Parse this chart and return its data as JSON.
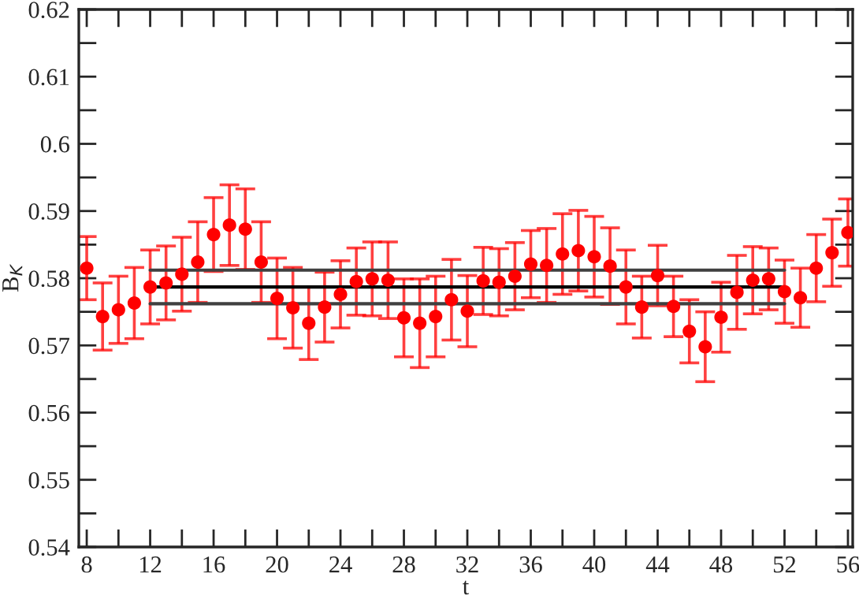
{
  "chart_data": {
    "type": "scatter",
    "xlabel": "t",
    "ylabel": "B$_{K}$",
    "xlim": [
      7.5,
      56.3
    ],
    "ylim": [
      0.54,
      0.62
    ],
    "xticks": [
      8,
      {
        "value": 10,
        "label": null
      },
      12,
      {
        "value": 14,
        "label": null
      },
      16,
      {
        "value": 18,
        "label": null
      },
      20,
      {
        "value": 22,
        "label": null
      },
      24,
      {
        "value": 26,
        "label": null
      },
      28,
      {
        "value": 30,
        "label": null
      },
      32,
      {
        "value": 34,
        "label": null
      },
      36,
      {
        "value": 38,
        "label": null
      },
      40,
      {
        "value": 42,
        "label": null
      },
      44,
      {
        "value": 46,
        "label": null
      },
      48,
      {
        "value": 50,
        "label": null
      },
      52,
      {
        "value": 54,
        "label": null
      },
      56
    ],
    "yticks": [
      0.54,
      {
        "value": 0.545,
        "label": null
      },
      0.55,
      {
        "value": 0.555,
        "label": null
      },
      0.56,
      {
        "value": 0.565,
        "label": null
      },
      0.57,
      {
        "value": 0.575,
        "label": null
      },
      0.58,
      {
        "value": 0.585,
        "label": null
      },
      0.59,
      {
        "value": 0.595,
        "label": null
      },
      0.6,
      {
        "value": 0.605,
        "label": null
      },
      0.61,
      {
        "value": 0.615,
        "label": null
      },
      0.62
    ],
    "grid": false,
    "series": [
      {
        "color": "#ff0000",
        "marker": "circle",
        "x": [
          8,
          9,
          10,
          11,
          12,
          13,
          14,
          15,
          16,
          17,
          18,
          19,
          20,
          21,
          22,
          23,
          24,
          25,
          26,
          27,
          28,
          29,
          30,
          31,
          32,
          33,
          34,
          35,
          36,
          37,
          38,
          39,
          40,
          41,
          42,
          43,
          44,
          45,
          46,
          47,
          48,
          49,
          50,
          51,
          52,
          53,
          54,
          55,
          56
        ],
        "values": [
          0.5815,
          0.5743,
          0.5753,
          0.5763,
          0.5787,
          0.5793,
          0.5806,
          0.5824,
          0.5865,
          0.5879,
          0.5873,
          0.5824,
          0.577,
          0.5756,
          0.5733,
          0.5757,
          0.5776,
          0.5795,
          0.5799,
          0.5797,
          0.5741,
          0.5733,
          0.5743,
          0.5768,
          0.5751,
          0.5796,
          0.5794,
          0.5803,
          0.5821,
          0.5819,
          0.5836,
          0.5841,
          0.5832,
          0.5818,
          0.5787,
          0.5757,
          0.5804,
          0.5758,
          0.5721,
          0.5698,
          0.5742,
          0.5779,
          0.5797,
          0.5799,
          0.578,
          0.5771,
          0.5815,
          0.5838,
          0.5868
        ],
        "errors": [
          0.0047,
          0.005,
          0.005,
          0.0053,
          0.0055,
          0.0055,
          0.0055,
          0.006,
          0.0055,
          0.006,
          0.006,
          0.006,
          0.006,
          0.006,
          0.0054,
          0.0052,
          0.005,
          0.005,
          0.0055,
          0.0057,
          0.0058,
          0.0066,
          0.006,
          0.006,
          0.0053,
          0.005,
          0.005,
          0.005,
          0.005,
          0.0055,
          0.006,
          0.006,
          0.006,
          0.0057,
          0.0055,
          0.0046,
          0.0045,
          0.0045,
          0.0047,
          0.0052,
          0.0052,
          0.0055,
          0.005,
          0.0046,
          0.0047,
          0.0044,
          0.005,
          0.005,
          0.005
        ]
      },
      {
        "type": "line",
        "color": "#404040",
        "marker": "none",
        "line_style": "solid",
        "x": [
          12,
          52
        ],
        "values": [
          0.5812,
          0.5812
        ]
      },
      {
        "type": "line",
        "color": "#000000",
        "marker": "none",
        "line_style": "solid",
        "x": [
          12,
          52
        ],
        "values": [
          0.5787,
          0.5787
        ]
      },
      {
        "type": "line",
        "color": "#404040",
        "marker": "none",
        "line_style": "solid",
        "x": [
          12,
          52
        ],
        "values": [
          0.5762,
          0.5762
        ]
      }
    ]
  }
}
